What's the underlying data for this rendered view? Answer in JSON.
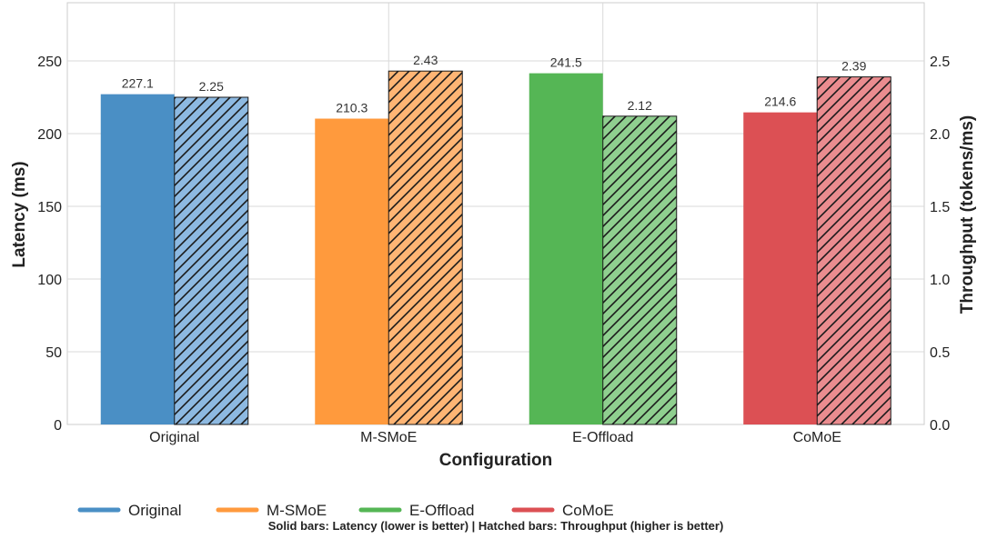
{
  "chart_data": {
    "type": "bar",
    "categories": [
      "Original",
      "M-SMoE",
      "E-Offload",
      "CoMoE"
    ],
    "colors": [
      "#4a8fc5",
      "#ff9a3d",
      "#55b655",
      "#dc5054"
    ],
    "hatch_colors": [
      "#8db9e1",
      "#ffb574",
      "#8fcf8f",
      "#ea8c8f"
    ],
    "series": [
      {
        "name": "Latency (ms)",
        "axis": "left",
        "style": "solid",
        "values": [
          227.1,
          210.3,
          241.5,
          214.6
        ]
      },
      {
        "name": "Throughput (tokens/ms)",
        "axis": "right",
        "style": "hatched",
        "values": [
          2.25,
          2.43,
          2.12,
          2.39
        ]
      }
    ],
    "value_labels_left": [
      "227.1",
      "210.3",
      "241.5",
      "214.6"
    ],
    "value_labels_right": [
      "2.25",
      "2.43",
      "2.12",
      "2.39"
    ],
    "xlabel": "Configuration",
    "ylabel": "Latency (ms)",
    "ylabel_right": "Throughput (tokens/ms)",
    "ylim": [
      0,
      290
    ],
    "ylim_right": [
      0,
      2.9
    ],
    "yticks": [
      "0",
      "50",
      "100",
      "150",
      "200",
      "250"
    ],
    "yticks_right": [
      "0.0",
      "0.5",
      "1.0",
      "1.5",
      "2.0",
      "2.5"
    ],
    "grid": true,
    "legend": {
      "position": "bottom",
      "entries": [
        "Original",
        "M-SMoE",
        "E-Offload",
        "CoMoE"
      ]
    },
    "note": "Solid bars: Latency (lower is better) | Hatched bars: Throughput (higher is better)"
  }
}
